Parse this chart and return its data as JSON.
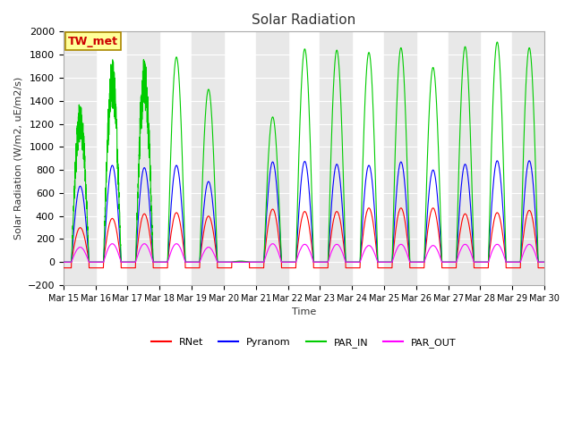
{
  "title": "Solar Radiation",
  "ylabel": "Solar Radiation (W/m2, uE/m2/s)",
  "xlabel": "Time",
  "ylim": [
    -200,
    2000
  ],
  "background_color": "#ffffff",
  "plot_bg_color": "#ffffff",
  "stripe_color": "#e8e8e8",
  "legend_labels": [
    "RNet",
    "Pyranom",
    "PAR_IN",
    "PAR_OUT"
  ],
  "legend_colors": [
    "#ff0000",
    "#0000ff",
    "#00cc00",
    "#ff00ff"
  ],
  "station_label": "TW_met",
  "station_box_color": "#ffff99",
  "station_border_color": "#aa8800",
  "station_text_color": "#cc0000",
  "yticks": [
    -200,
    0,
    200,
    400,
    600,
    800,
    1000,
    1200,
    1400,
    1600,
    1800,
    2000
  ],
  "xtick_labels": [
    "Mar 15",
    "Mar 16",
    "Mar 17",
    "Mar 18",
    "Mar 19",
    "Mar 20",
    "Mar 21",
    "Mar 22",
    "Mar 23",
    "Mar 24",
    "Mar 25",
    "Mar 26",
    "Mar 27",
    "Mar 28",
    "Mar 29",
    "Mar 30"
  ],
  "n_days": 15,
  "samples_per_day": 288,
  "par_in_peaks": [
    1400,
    1780,
    1780,
    1780,
    1500,
    120,
    1260,
    1850,
    1840,
    1820,
    1860,
    1690,
    1870,
    1910,
    1860
  ],
  "pyranom_peaks": [
    660,
    840,
    820,
    840,
    700,
    50,
    870,
    875,
    850,
    840,
    870,
    800,
    850,
    880,
    880
  ],
  "rnet_peaks": [
    300,
    380,
    420,
    430,
    400,
    30,
    460,
    440,
    440,
    470,
    470,
    470,
    420,
    430,
    450
  ],
  "par_out_peaks": [
    130,
    160,
    160,
    160,
    130,
    10,
    160,
    155,
    155,
    145,
    155,
    145,
    155,
    155,
    155
  ],
  "day_start": 0.25,
  "day_end": 0.8,
  "night_rnet": -50,
  "figsize": [
    6.4,
    4.8
  ],
  "dpi": 100
}
